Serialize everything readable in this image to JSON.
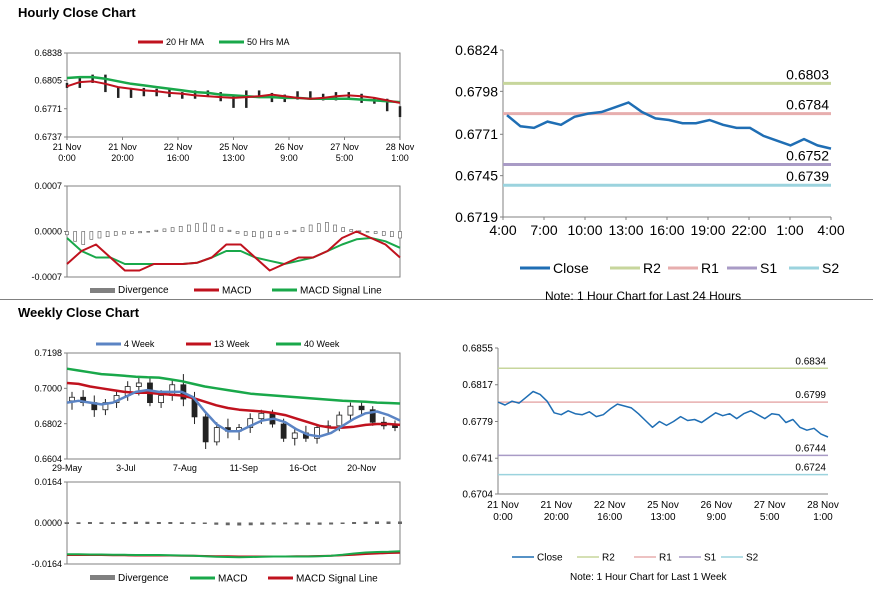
{
  "headings": {
    "hourly": "Hourly Close Chart",
    "weekly": "Weekly Close Chart"
  },
  "notes": {
    "hourly": "Note: 1 Hour Chart for Last 24 Hours",
    "weekly": "Note: 1 Hour Chart for Last 1 Week"
  },
  "colors": {
    "ma_red": "#c0121e",
    "ma_green": "#19a84a",
    "ma_blue": "#5b84c4",
    "close": "#1f6eb4",
    "R2": "#c7d69c",
    "R1": "#e7aeae",
    "S1": "#a99bc6",
    "S2": "#9bd3de",
    "candle": "#222222",
    "divergence": "#808080"
  },
  "chart_data": [
    {
      "id": "hourly-price",
      "type": "line",
      "legend": [
        "20 Hr MA",
        "50 Hrs MA"
      ],
      "x_ticks": [
        "21 Nov\n0:00",
        "21 Nov\n20:00",
        "22 Nov\n16:00",
        "25 Nov\n13:00",
        "26 Nov\n9:00",
        "27 Nov\n5:00",
        "28 Nov\n1:00"
      ],
      "y_ticks": [
        "0.6838",
        "0.6805",
        "0.6771",
        "0.6737"
      ],
      "ylim": [
        0.6737,
        0.6838
      ],
      "series": [
        {
          "name": "20 Hr MA",
          "values": [
            0.6798,
            0.6803,
            0.6804,
            0.6801,
            0.6797,
            0.6795,
            0.6793,
            0.6792,
            0.679,
            0.6789,
            0.6787,
            0.6786,
            0.6785,
            0.6784,
            0.6785,
            0.6786,
            0.6788,
            0.6786,
            0.6784,
            0.6783,
            0.6784,
            0.6786,
            0.6787,
            0.6786,
            0.6784,
            0.6781,
            0.6778
          ]
        },
        {
          "name": "50 Hrs MA",
          "values": [
            0.6808,
            0.6809,
            0.6809,
            0.6807,
            0.6804,
            0.6801,
            0.6799,
            0.6797,
            0.6795,
            0.6793,
            0.6791,
            0.679,
            0.6788,
            0.6787,
            0.6786,
            0.6785,
            0.6785,
            0.6784,
            0.6784,
            0.6783,
            0.6783,
            0.6783,
            0.6783,
            0.6782,
            0.6781,
            0.678,
            0.6779
          ]
        },
        {
          "name": "price",
          "values": [
            0.6799,
            0.6805,
            0.6809,
            0.6794,
            0.6787,
            0.6793,
            0.6789,
            0.6792,
            0.6788,
            0.6786,
            0.679,
            0.6788,
            0.6783,
            0.6775,
            0.679,
            0.6787,
            0.6782,
            0.6785,
            0.6789,
            0.6786,
            0.6784,
            0.6788,
            0.6786,
            0.6781,
            0.678,
            0.6771,
            0.6764
          ]
        }
      ]
    },
    {
      "id": "hourly-macd",
      "type": "line",
      "legend": [
        "Divergence",
        "MACD",
        "MACD Signal Line"
      ],
      "y_ticks": [
        "0.0007",
        "0.0000",
        "-0.0007"
      ],
      "ylim": [
        -0.0007,
        0.0007
      ],
      "divergence": [
        -5e-05,
        -0.00015,
        -0.0002,
        -0.00012,
        -0.0001,
        -8e-05,
        -6e-05,
        -4e-05,
        -3e-05,
        -2e-05,
        -1e-05,
        2e-05,
        4e-05,
        6e-05,
        8e-05,
        0.0001,
        0.00012,
        0.00013,
        0.0001,
        6e-05,
        2e-05,
        -3e-05,
        -6e-05,
        -8e-05,
        -0.0001,
        -8e-05,
        -5e-05,
        -3e-05,
        2e-05,
        6e-05,
        0.0001,
        0.00012,
        0.00014,
        0.0001,
        6e-05,
        3e-05,
        1e-05,
        -1e-05,
        -3e-05,
        -6e-05,
        -8e-05,
        -0.0001
      ],
      "series": [
        {
          "name": "MACD",
          "values": [
            -0.0005,
            -0.0003,
            -0.0002,
            -0.0004,
            -0.0006,
            -0.0006,
            -0.0005,
            -0.0005,
            -0.0005,
            -0.00048,
            -0.0004,
            -0.0002,
            -0.0002,
            -0.0004,
            -0.0006,
            -0.0005,
            -0.0004,
            -0.0004,
            -0.0003,
            -0.0001,
            0.0,
            -0.0001,
            -0.0002,
            -0.0004
          ]
        },
        {
          "name": "MACD Signal Line",
          "values": [
            -0.0001,
            -0.0003,
            -0.0004,
            -0.0004,
            -0.0005,
            -0.0005,
            -0.0005,
            -0.0005,
            -0.0005,
            -0.00048,
            -0.0004,
            -0.0003,
            -0.0003,
            -0.0004,
            -0.00045,
            -0.0005,
            -0.00045,
            -0.0004,
            -0.0003,
            -0.0002,
            -0.00012,
            -0.0001,
            -0.00015,
            -0.00025
          ]
        }
      ]
    },
    {
      "id": "hourly-24h",
      "type": "line",
      "x_ticks": [
        "4:00",
        "7:00",
        "10:00",
        "13:00",
        "16:00",
        "19:00",
        "22:00",
        "1:00",
        "4:00"
      ],
      "y_ticks": [
        "0.6824",
        "0.6798",
        "0.6771",
        "0.6745",
        "0.6719"
      ],
      "ylim": [
        0.6719,
        0.6824
      ],
      "legend": [
        "Close",
        "R2",
        "R1",
        "S1",
        "S2"
      ],
      "levels": [
        {
          "name": "R2",
          "value": 0.6803,
          "label": "0.6803"
        },
        {
          "name": "R1",
          "value": 0.6784,
          "label": "0.6784"
        },
        {
          "name": "S1",
          "value": 0.6752,
          "label": "0.6752"
        },
        {
          "name": "S2",
          "value": 0.6739,
          "label": "0.6739"
        }
      ],
      "series": [
        {
          "name": "Close",
          "values": [
            0.6783,
            0.6776,
            0.6775,
            0.6779,
            0.6777,
            0.6782,
            0.6784,
            0.6785,
            0.6788,
            0.6791,
            0.6785,
            0.6781,
            0.678,
            0.6778,
            0.6778,
            0.678,
            0.6777,
            0.6775,
            0.6775,
            0.677,
            0.6767,
            0.6764,
            0.6768,
            0.6764,
            0.6762
          ]
        }
      ]
    },
    {
      "id": "weekly-price",
      "type": "line",
      "legend": [
        "4 Week",
        "13 Week",
        "40 Week"
      ],
      "x_ticks": [
        "29-May",
        "3-Jul",
        "7-Aug",
        "11-Sep",
        "16-Oct",
        "20-Nov"
      ],
      "y_ticks": [
        "0.7198",
        "0.7000",
        "0.6802",
        "0.6604"
      ],
      "ylim": [
        0.6604,
        0.7198
      ],
      "candles": [
        [
          0.693,
          0.698,
          0.688,
          0.695
        ],
        [
          0.695,
          0.699,
          0.69,
          0.692
        ],
        [
          0.692,
          0.696,
          0.684,
          0.688
        ],
        [
          0.688,
          0.694,
          0.685,
          0.692
        ],
        [
          0.692,
          0.698,
          0.689,
          0.696
        ],
        [
          0.696,
          0.704,
          0.693,
          0.701
        ],
        [
          0.701,
          0.706,
          0.696,
          0.703
        ],
        [
          0.703,
          0.706,
          0.69,
          0.692
        ],
        [
          0.692,
          0.699,
          0.689,
          0.696
        ],
        [
          0.696,
          0.705,
          0.693,
          0.702
        ],
        [
          0.702,
          0.708,
          0.69,
          0.694
        ],
        [
          0.694,
          0.698,
          0.68,
          0.684
        ],
        [
          0.684,
          0.687,
          0.666,
          0.67
        ],
        [
          0.67,
          0.681,
          0.668,
          0.678
        ],
        [
          0.678,
          0.683,
          0.672,
          0.676
        ],
        [
          0.676,
          0.68,
          0.671,
          0.678
        ],
        [
          0.678,
          0.686,
          0.675,
          0.683
        ],
        [
          0.683,
          0.688,
          0.68,
          0.686
        ],
        [
          0.686,
          0.688,
          0.678,
          0.68
        ],
        [
          0.68,
          0.683,
          0.67,
          0.672
        ],
        [
          0.672,
          0.678,
          0.668,
          0.675
        ],
        [
          0.675,
          0.679,
          0.67,
          0.672
        ],
        [
          0.672,
          0.68,
          0.669,
          0.678
        ],
        [
          0.678,
          0.682,
          0.674,
          0.679
        ],
        [
          0.679,
          0.687,
          0.676,
          0.685
        ],
        [
          0.685,
          0.692,
          0.682,
          0.69
        ],
        [
          0.69,
          0.693,
          0.685,
          0.688
        ],
        [
          0.688,
          0.69,
          0.679,
          0.681
        ],
        [
          0.681,
          0.684,
          0.677,
          0.679
        ],
        [
          0.679,
          0.682,
          0.676,
          0.678
        ]
      ],
      "series": [
        {
          "name": "4 Week",
          "values": [
            0.692,
            0.693,
            0.692,
            0.691,
            0.692,
            0.695,
            0.698,
            0.699,
            0.698,
            0.698,
            0.698,
            0.695,
            0.687,
            0.68,
            0.676,
            0.676,
            0.679,
            0.682,
            0.683,
            0.681,
            0.677,
            0.674,
            0.673,
            0.675,
            0.679,
            0.683,
            0.686,
            0.687,
            0.685,
            0.682
          ]
        },
        {
          "name": "13 Week",
          "values": [
            0.703,
            0.7025,
            0.701,
            0.7,
            0.699,
            0.698,
            0.6975,
            0.6975,
            0.697,
            0.6965,
            0.696,
            0.6945,
            0.6925,
            0.6905,
            0.689,
            0.688,
            0.6875,
            0.687,
            0.6862,
            0.685,
            0.683,
            0.681,
            0.679,
            0.678,
            0.678,
            0.6785,
            0.6795,
            0.68,
            0.68,
            0.6795
          ]
        },
        {
          "name": "40 Week",
          "values": [
            0.711,
            0.71,
            0.709,
            0.708,
            0.7075,
            0.707,
            0.7065,
            0.7062,
            0.706,
            0.705,
            0.704,
            0.7025,
            0.701,
            0.7,
            0.699,
            0.698,
            0.697,
            0.6965,
            0.696,
            0.6955,
            0.695,
            0.6945,
            0.694,
            0.6935,
            0.693,
            0.6928,
            0.6925,
            0.692,
            0.6918,
            0.6915
          ]
        }
      ]
    },
    {
      "id": "weekly-macd",
      "type": "line",
      "legend": [
        "Divergence",
        "MACD",
        "MACD Signal Line"
      ],
      "y_ticks": [
        "0.0164",
        "0.0000",
        "-0.0164"
      ],
      "ylim": [
        -0.0164,
        0.0164
      ],
      "divergence": [
        0.0001,
        0.0001,
        0.0002,
        0.0001,
        0.0001,
        0.0002,
        0.0003,
        0.0003,
        0.0002,
        0.0002,
        0.0001,
        0.0001,
        0.0,
        -0.0003,
        -0.0005,
        -0.0006,
        -0.0005,
        -0.0003,
        -0.0002,
        -0.0001,
        -0.0002,
        -0.0003,
        -0.0003,
        -0.0002,
        0.0,
        0.0002,
        0.0003,
        0.0004,
        0.0004,
        0.0004
      ],
      "series": [
        {
          "name": "MACD",
          "values": [
            -0.0125,
            -0.0125,
            -0.0126,
            -0.0126,
            -0.0127,
            -0.0127,
            -0.0128,
            -0.0128,
            -0.0128,
            -0.0129,
            -0.013,
            -0.0131,
            -0.0133,
            -0.0135,
            -0.0136,
            -0.0137,
            -0.0136,
            -0.0135,
            -0.0134,
            -0.0134,
            -0.0134,
            -0.0134,
            -0.0133,
            -0.0131,
            -0.0127,
            -0.0122,
            -0.0118,
            -0.0116,
            -0.0115,
            -0.0113
          ]
        },
        {
          "name": "MACD Signal Line",
          "values": [
            -0.0128,
            -0.0128,
            -0.0128,
            -0.0128,
            -0.0129,
            -0.0129,
            -0.013,
            -0.013,
            -0.013,
            -0.013,
            -0.0131,
            -0.0131,
            -0.0132,
            -0.0133,
            -0.0133,
            -0.0134,
            -0.0134,
            -0.0134,
            -0.0134,
            -0.0134,
            -0.0133,
            -0.0133,
            -0.0132,
            -0.0131,
            -0.0129,
            -0.0127,
            -0.0124,
            -0.0122,
            -0.012,
            -0.0119
          ]
        }
      ]
    },
    {
      "id": "weekly-1w",
      "type": "line",
      "x_ticks": [
        "21 Nov\n0:00",
        "21 Nov\n20:00",
        "22 Nov\n16:00",
        "25 Nov\n13:00",
        "26 Nov\n9:00",
        "27 Nov\n5:00",
        "28 Nov\n1:00"
      ],
      "y_ticks": [
        "0.6855",
        "0.6817",
        "0.6779",
        "0.6741",
        "0.6704"
      ],
      "ylim": [
        0.6704,
        0.6855
      ],
      "legend": [
        "Close",
        "R2",
        "R1",
        "S1",
        "S2"
      ],
      "levels": [
        {
          "name": "R2",
          "value": 0.6834,
          "label": "0.6834"
        },
        {
          "name": "R1",
          "value": 0.6799,
          "label": "0.6799"
        },
        {
          "name": "S1",
          "value": 0.6744,
          "label": "0.6744"
        },
        {
          "name": "S2",
          "value": 0.6724,
          "label": "0.6724"
        }
      ],
      "series": [
        {
          "name": "Close",
          "values": [
            0.6799,
            0.6796,
            0.68,
            0.6798,
            0.6804,
            0.681,
            0.6807,
            0.68,
            0.6788,
            0.6786,
            0.679,
            0.6787,
            0.6786,
            0.6789,
            0.6784,
            0.6786,
            0.6792,
            0.6797,
            0.6795,
            0.6793,
            0.6787,
            0.678,
            0.6773,
            0.6779,
            0.6775,
            0.6779,
            0.6784,
            0.678,
            0.6781,
            0.6778,
            0.6783,
            0.6788,
            0.6785,
            0.6787,
            0.6782,
            0.6787,
            0.679,
            0.6786,
            0.6782,
            0.6787,
            0.6786,
            0.6778,
            0.6781,
            0.6773,
            0.677,
            0.6772,
            0.6766,
            0.6763
          ]
        }
      ]
    }
  ]
}
